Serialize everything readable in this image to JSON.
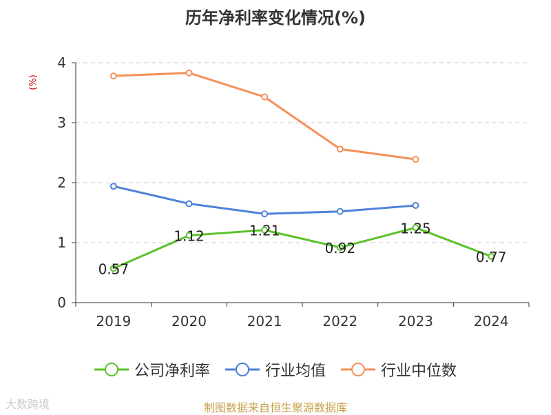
{
  "chart_data": {
    "type": "line",
    "title": "历年净利率变化情况(%)",
    "ylabel": "(%)",
    "categories": [
      "2019",
      "2020",
      "2021",
      "2022",
      "2023",
      "2024"
    ],
    "ylim": [
      0,
      4
    ],
    "yticks": [
      "0",
      "1",
      "2",
      "3",
      "4"
    ],
    "grid": true,
    "legend_position": "bottom",
    "series": [
      {
        "name": "公司净利率",
        "color": "#5ac229",
        "values": [
          0.57,
          1.12,
          1.21,
          0.92,
          1.25,
          0.77
        ],
        "labels": [
          "0.57",
          "1.12",
          "1.21",
          "0.92",
          "1.25",
          "0.77"
        ]
      },
      {
        "name": "行业均值",
        "color": "#4f81d9",
        "values": [
          1.94,
          1.65,
          1.48,
          1.52,
          1.62,
          null
        ]
      },
      {
        "name": "行业中位数",
        "color": "#f5905a",
        "values": [
          3.78,
          3.83,
          3.43,
          2.56,
          2.39,
          null
        ]
      }
    ]
  },
  "source": "制图数据来自恒生聚源数据库",
  "watermark": "大数跨境"
}
